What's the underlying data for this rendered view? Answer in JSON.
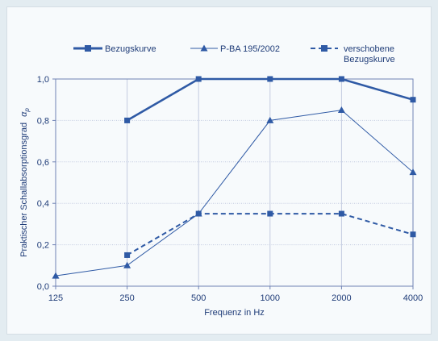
{
  "chart_data": {
    "type": "line",
    "title": "",
    "xlabel": "Frequenz in Hz",
    "ylabel": "Praktischer Schallabsorptionsgrad",
    "ylabel_symbol": "α",
    "ylabel_subscript": "p",
    "x_categories": [
      "125",
      "250",
      "500",
      "1000",
      "2000",
      "4000"
    ],
    "y_ticks": [
      "0,0",
      "0,2",
      "0,4",
      "0,6",
      "0,8",
      "1,0"
    ],
    "ylim": [
      0,
      1
    ],
    "grid": true,
    "legend_position": "top",
    "colors": {
      "line": "#2f5aa5",
      "text": "#1f3c78",
      "grid": "#c3cbe0",
      "axis": "#6f82b4"
    },
    "series": [
      {
        "name": "Bezugskurve",
        "style": "bold-solid",
        "marker": "square",
        "points": [
          {
            "x": "250",
            "y": 0.8
          },
          {
            "x": "500",
            "y": 1.0
          },
          {
            "x": "1000",
            "y": 1.0
          },
          {
            "x": "2000",
            "y": 1.0
          },
          {
            "x": "4000",
            "y": 0.9
          }
        ]
      },
      {
        "name": "P-BA 195/2002",
        "style": "thin-solid",
        "marker": "triangle",
        "points": [
          {
            "x": "125",
            "y": 0.05
          },
          {
            "x": "250",
            "y": 0.1
          },
          {
            "x": "500",
            "y": 0.35
          },
          {
            "x": "1000",
            "y": 0.8
          },
          {
            "x": "2000",
            "y": 0.85
          },
          {
            "x": "4000",
            "y": 0.55
          }
        ]
      },
      {
        "name": "verschobene Bezugskurve",
        "name_lines": [
          "verschobene",
          "Bezugskurve"
        ],
        "style": "dashed",
        "marker": "square",
        "points": [
          {
            "x": "250",
            "y": 0.15
          },
          {
            "x": "500",
            "y": 0.35
          },
          {
            "x": "1000",
            "y": 0.35
          },
          {
            "x": "2000",
            "y": 0.35
          },
          {
            "x": "4000",
            "y": 0.25
          }
        ]
      }
    ]
  }
}
